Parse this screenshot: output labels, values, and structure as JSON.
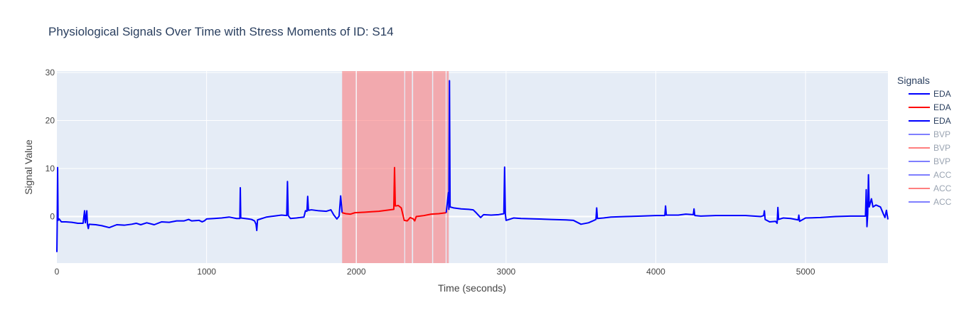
{
  "chart_data": {
    "type": "line",
    "title": "Physiological Signals Over Time with Stress Moments of ID: S14",
    "xlabel": "Time (seconds)",
    "ylabel": "Signal Value",
    "xlim": [
      0,
      5550
    ],
    "ylim": [
      -9.7,
      30.3
    ],
    "xticks": [
      0,
      1000,
      2000,
      3000,
      4000,
      5000
    ],
    "yticks": [
      0,
      10,
      20,
      30
    ],
    "grid": true,
    "legend": {
      "title": "Signals",
      "placement": "right"
    },
    "stress_regions": [
      {
        "x0": 1905,
        "x1": 1996
      },
      {
        "x0": 2003,
        "x1": 2320
      },
      {
        "x0": 2326,
        "x1": 2371
      },
      {
        "x0": 2379,
        "x1": 2506
      },
      {
        "x0": 2513,
        "x1": 2596
      },
      {
        "x0": 2603,
        "x1": 2617
      }
    ],
    "series": [
      {
        "name": "EDA",
        "color": "#0000ff",
        "opacity": 1,
        "points": [
          [
            0,
            -7.4
          ],
          [
            2,
            -2
          ],
          [
            5,
            10.2
          ],
          [
            8,
            -0.8
          ],
          [
            15,
            -0.5
          ],
          [
            30,
            -1.1
          ],
          [
            60,
            -1.1
          ],
          [
            100,
            -1.2
          ],
          [
            140,
            -1.4
          ],
          [
            175,
            -1.4
          ],
          [
            185,
            1.2
          ],
          [
            190,
            -1.3
          ],
          [
            200,
            1.2
          ],
          [
            204,
            -1.6
          ],
          [
            210,
            -2.5
          ],
          [
            215,
            -1.6
          ],
          [
            260,
            -1.7
          ],
          [
            300,
            -1.9
          ],
          [
            350,
            -2.3
          ],
          [
            400,
            -1.7
          ],
          [
            450,
            -1.8
          ],
          [
            500,
            -1.6
          ],
          [
            530,
            -1.4
          ],
          [
            560,
            -1.7
          ],
          [
            600,
            -1.3
          ],
          [
            650,
            -1.7
          ],
          [
            700,
            -1.1
          ],
          [
            750,
            -1.2
          ],
          [
            800,
            -0.9
          ],
          [
            850,
            -0.9
          ],
          [
            880,
            -0.6
          ],
          [
            900,
            -0.9
          ],
          [
            950,
            -0.8
          ],
          [
            970,
            -1.1
          ],
          [
            985,
            -0.9
          ],
          [
            1000,
            -0.5
          ],
          [
            1050,
            -0.4
          ],
          [
            1100,
            -0.3
          ],
          [
            1150,
            -0.1
          ],
          [
            1200,
            -0.4
          ],
          [
            1222,
            -0.4
          ],
          [
            1225,
            6
          ],
          [
            1228,
            -0.3
          ],
          [
            1280,
            -0.5
          ],
          [
            1300,
            -0.6
          ],
          [
            1320,
            -0.9
          ],
          [
            1330,
            -1.6
          ],
          [
            1335,
            -2.9
          ],
          [
            1340,
            -0.7
          ],
          [
            1400,
            -0.1
          ],
          [
            1450,
            0.1
          ],
          [
            1500,
            0.3
          ],
          [
            1535,
            0.2
          ],
          [
            1540,
            7.3
          ],
          [
            1545,
            0.2
          ],
          [
            1560,
            -0.4
          ],
          [
            1600,
            -0.3
          ],
          [
            1650,
            -0.1
          ],
          [
            1660,
            1.2
          ],
          [
            1670,
            1.1
          ],
          [
            1675,
            4.2
          ],
          [
            1680,
            1.3
          ],
          [
            1700,
            1.4
          ],
          [
            1750,
            1.2
          ],
          [
            1800,
            1.1
          ],
          [
            1830,
            1.4
          ],
          [
            1850,
            0.3
          ],
          [
            1870,
            -0.5
          ],
          [
            1885,
            0.1
          ],
          [
            1895,
            4.3
          ],
          [
            1905,
            0.8
          ]
        ]
      },
      {
        "name": "EDA",
        "color": "#ff0000",
        "opacity": 1,
        "points": [
          [
            1905,
            0.8
          ],
          [
            1930,
            0.6
          ],
          [
            1960,
            0.5
          ],
          [
            1990,
            0.8
          ],
          [
            2050,
            0.9
          ],
          [
            2100,
            1.0
          ],
          [
            2150,
            1.1
          ],
          [
            2200,
            1.3
          ],
          [
            2250,
            1.5
          ],
          [
            2255,
            10.2
          ],
          [
            2260,
            2.2
          ],
          [
            2280,
            2.3
          ],
          [
            2300,
            1.8
          ],
          [
            2320,
            -0.8
          ],
          [
            2340,
            -0.9
          ],
          [
            2360,
            -0.2
          ],
          [
            2380,
            -0.5
          ],
          [
            2390,
            -0.9
          ],
          [
            2400,
            0
          ],
          [
            2450,
            0.2
          ],
          [
            2500,
            0.5
          ],
          [
            2550,
            0.6
          ],
          [
            2600,
            0.8
          ]
        ]
      },
      {
        "name": "EDA",
        "color": "#0000ff",
        "opacity": 1,
        "points": [
          [
            2600,
            0.8
          ],
          [
            2615,
            5.0
          ],
          [
            2618,
            1.5
          ],
          [
            2622,
            28.3
          ],
          [
            2626,
            2.0
          ],
          [
            2650,
            1.8
          ],
          [
            2700,
            1.6
          ],
          [
            2750,
            1.5
          ],
          [
            2780,
            1.4
          ],
          [
            2800,
            0.8
          ],
          [
            2830,
            -0.2
          ],
          [
            2850,
            0.4
          ],
          [
            2900,
            0.3
          ],
          [
            2950,
            0.4
          ],
          [
            2985,
            0.6
          ],
          [
            2990,
            10.3
          ],
          [
            2995,
            0.5
          ],
          [
            3000,
            -0.8
          ],
          [
            3050,
            -0.3
          ],
          [
            3100,
            -0.4
          ],
          [
            3200,
            -0.5
          ],
          [
            3300,
            -0.6
          ],
          [
            3400,
            -0.7
          ],
          [
            3450,
            -0.8
          ],
          [
            3500,
            -1.6
          ],
          [
            3550,
            -1.3
          ],
          [
            3580,
            -0.9
          ],
          [
            3600,
            -0.6
          ],
          [
            3605,
            1.8
          ],
          [
            3610,
            -0.4
          ],
          [
            3650,
            -0.3
          ],
          [
            3700,
            -0.1
          ],
          [
            3800,
            0
          ],
          [
            3900,
            0.1
          ],
          [
            4000,
            0.2
          ],
          [
            4060,
            0.2
          ],
          [
            4065,
            2.2
          ],
          [
            4070,
            0.3
          ],
          [
            4150,
            0.3
          ],
          [
            4200,
            0.5
          ],
          [
            4250,
            0.4
          ],
          [
            4255,
            1.6
          ],
          [
            4260,
            0.2
          ],
          [
            4300,
            0.1
          ],
          [
            4400,
            0.2
          ],
          [
            4500,
            0.2
          ],
          [
            4600,
            0.2
          ],
          [
            4700,
            0
          ],
          [
            4720,
            0.2
          ],
          [
            4725,
            1.2
          ],
          [
            4730,
            -0.6
          ],
          [
            4760,
            -1.1
          ],
          [
            4800,
            -1.0
          ],
          [
            4810,
            -1.4
          ],
          [
            4815,
            1.9
          ],
          [
            4820,
            -0.6
          ],
          [
            4850,
            -0.3
          ],
          [
            4900,
            -0.4
          ],
          [
            4950,
            -0.7
          ],
          [
            4955,
            0.3
          ],
          [
            4960,
            -1.0
          ],
          [
            5000,
            -0.3
          ],
          [
            5100,
            -0.2
          ],
          [
            5200,
            0
          ],
          [
            5300,
            0.1
          ],
          [
            5400,
            0.1
          ],
          [
            5405,
            5.6
          ],
          [
            5410,
            -2.1
          ],
          [
            5415,
            0.5
          ],
          [
            5420,
            8.7
          ],
          [
            5425,
            2.0
          ],
          [
            5440,
            3.7
          ],
          [
            5450,
            2.0
          ],
          [
            5470,
            2.4
          ],
          [
            5500,
            2.0
          ],
          [
            5520,
            0.5
          ],
          [
            5530,
            -0.2
          ],
          [
            5540,
            1.3
          ],
          [
            5550,
            -0.6
          ]
        ]
      },
      {
        "name": "BVP",
        "color": "#0000ff",
        "opacity": 0.5,
        "points": []
      },
      {
        "name": "BVP",
        "color": "#ff0000",
        "opacity": 0.5,
        "points": []
      },
      {
        "name": "BVP",
        "color": "#0000ff",
        "opacity": 0.5,
        "points": []
      },
      {
        "name": "ACC",
        "color": "#0000ff",
        "opacity": 0.5,
        "points": []
      },
      {
        "name": "ACC",
        "color": "#ff0000",
        "opacity": 0.5,
        "points": []
      },
      {
        "name": "ACC",
        "color": "#0000ff",
        "opacity": 0.5,
        "points": []
      }
    ]
  },
  "colors": {
    "plot_bg": "#e5ecf6",
    "grid": "#ffffff",
    "stress_fill": "#ff6666",
    "series_blue": "#0000ff",
    "series_red": "#ff0000"
  }
}
